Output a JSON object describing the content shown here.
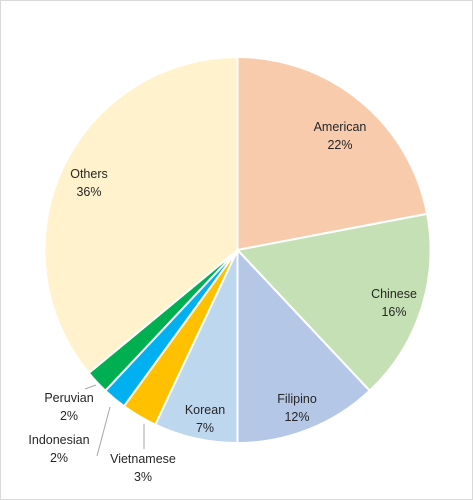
{
  "chart_data": {
    "type": "pie",
    "title": "",
    "legend": "none",
    "slices": [
      {
        "label": "American",
        "percent_label": "22%",
        "value": 22,
        "color": "#f7cbac"
      },
      {
        "label": "Chinese",
        "percent_label": "16%",
        "value": 16,
        "color": "#c5e0b4"
      },
      {
        "label": "Filipino",
        "percent_label": "12%",
        "value": 12,
        "color": "#b4c7e7"
      },
      {
        "label": "Korean",
        "percent_label": "7%",
        "value": 7,
        "color": "#bdd7ee"
      },
      {
        "label": "Vietnamese",
        "percent_label": "3%",
        "value": 3,
        "color": "#ffc000"
      },
      {
        "label": "Indonesian",
        "percent_label": "2%",
        "value": 2,
        "color": "#00b0f0"
      },
      {
        "label": "Peruvian",
        "percent_label": "2%",
        "value": 2,
        "color": "#00b050"
      },
      {
        "label": "Others",
        "percent_label": "36%",
        "value": 36,
        "color": "#fff2cc"
      }
    ]
  }
}
